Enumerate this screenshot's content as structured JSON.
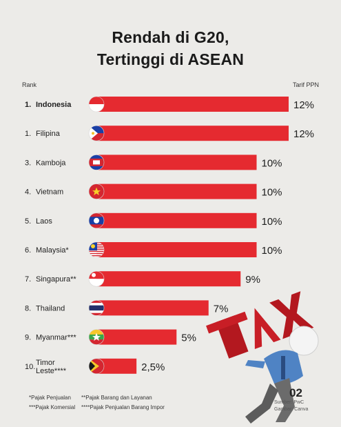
{
  "title_line1": "Rendah di G20,",
  "title_line2": "Tertinggi di ASEAN",
  "header_rank": "Rank",
  "header_rate": "Tarif PPN",
  "footnotes": {
    "f1": "*Pajak Penjualan",
    "f2": "**Pajak Barang dan Layanan",
    "f3": "***Pajak Komersial",
    "f4": "****Pajak Penjualan Barang Impor"
  },
  "page_number": "02",
  "source_line1": "Sumber: PwC",
  "source_line2": "Gambar: Canva",
  "illustration_text": "TAX",
  "colors": {
    "bar": "#e52a30",
    "background": "#ecebe8"
  },
  "chart_data": {
    "type": "bar",
    "orientation": "horizontal",
    "title": "Rendah di G20, Tertinggi di ASEAN",
    "xlabel": "Tarif PPN",
    "ylabel": "Rank",
    "xlim": [
      0,
      12
    ],
    "grid": false,
    "legend": "none",
    "categories": [
      "Indonesia",
      "Filipina",
      "Kamboja",
      "Vietnam",
      "Laos",
      "Malaysia*",
      "Singapura**",
      "Thailand",
      "Myanmar***",
      "Timor Leste****"
    ],
    "ranks": [
      "1.",
      "1.",
      "3.",
      "4.",
      "5.",
      "6.",
      "7.",
      "8.",
      "9.",
      "10."
    ],
    "values": [
      12,
      12,
      10,
      10,
      10,
      10,
      9,
      7,
      5,
      2.5
    ],
    "labels": [
      "12%",
      "12%",
      "10%",
      "10%",
      "10%",
      "10%",
      "9%",
      "7%",
      "5%",
      "2,5%"
    ],
    "flags": [
      "indonesia-flag-icon",
      "philippines-flag-icon",
      "cambodia-flag-icon",
      "vietnam-flag-icon",
      "laos-flag-icon",
      "malaysia-flag-icon",
      "singapore-flag-icon",
      "thailand-flag-icon",
      "myanmar-flag-icon",
      "timor-leste-flag-icon"
    ],
    "highlight": "Indonesia"
  }
}
